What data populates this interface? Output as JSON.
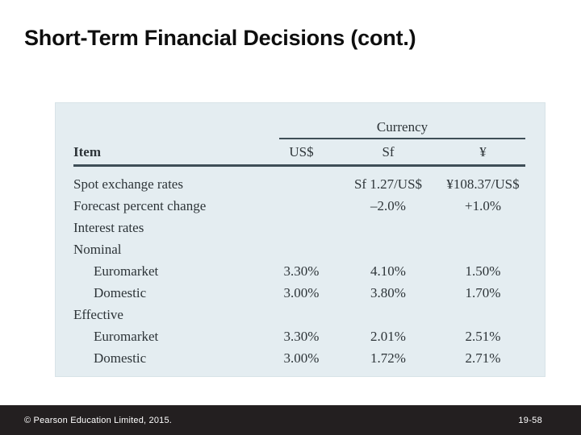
{
  "slide": {
    "title": "Short-Term Financial Decisions (cont.)",
    "footer": {
      "copyright": "© Pearson Education Limited, 2015.",
      "page_number": "19-58"
    }
  },
  "table": {
    "currency_group_header": "Currency",
    "columns": [
      "Item",
      "US$",
      "Sf",
      "¥"
    ],
    "rows": [
      {
        "item": "Spot exchange rates",
        "indent": false,
        "us": "",
        "sf": "Sf 1.27/US$",
        "yen": "¥108.37/US$"
      },
      {
        "item": "Forecast percent change",
        "indent": false,
        "us": "",
        "sf": "–2.0%",
        "yen": "+1.0%"
      },
      {
        "item": "Interest rates",
        "indent": false,
        "us": "",
        "sf": "",
        "yen": ""
      },
      {
        "item": "Nominal",
        "indent": false,
        "us": "",
        "sf": "",
        "yen": ""
      },
      {
        "item": "Euromarket",
        "indent": true,
        "us": "3.30%",
        "sf": "4.10%",
        "yen": "1.50%"
      },
      {
        "item": "Domestic",
        "indent": true,
        "us": "3.00%",
        "sf": "3.80%",
        "yen": "1.70%"
      },
      {
        "item": "Effective",
        "indent": false,
        "us": "",
        "sf": "",
        "yen": ""
      },
      {
        "item": "Euromarket",
        "indent": true,
        "us": "3.30%",
        "sf": "2.01%",
        "yen": "2.51%"
      },
      {
        "item": "Domestic",
        "indent": true,
        "us": "3.00%",
        "sf": "1.72%",
        "yen": "2.71%"
      }
    ],
    "colors": {
      "panel_bg": "#e4edf1",
      "rule": "#3e4e57",
      "footer_bg": "#231f20",
      "text": "#2d3438"
    }
  }
}
